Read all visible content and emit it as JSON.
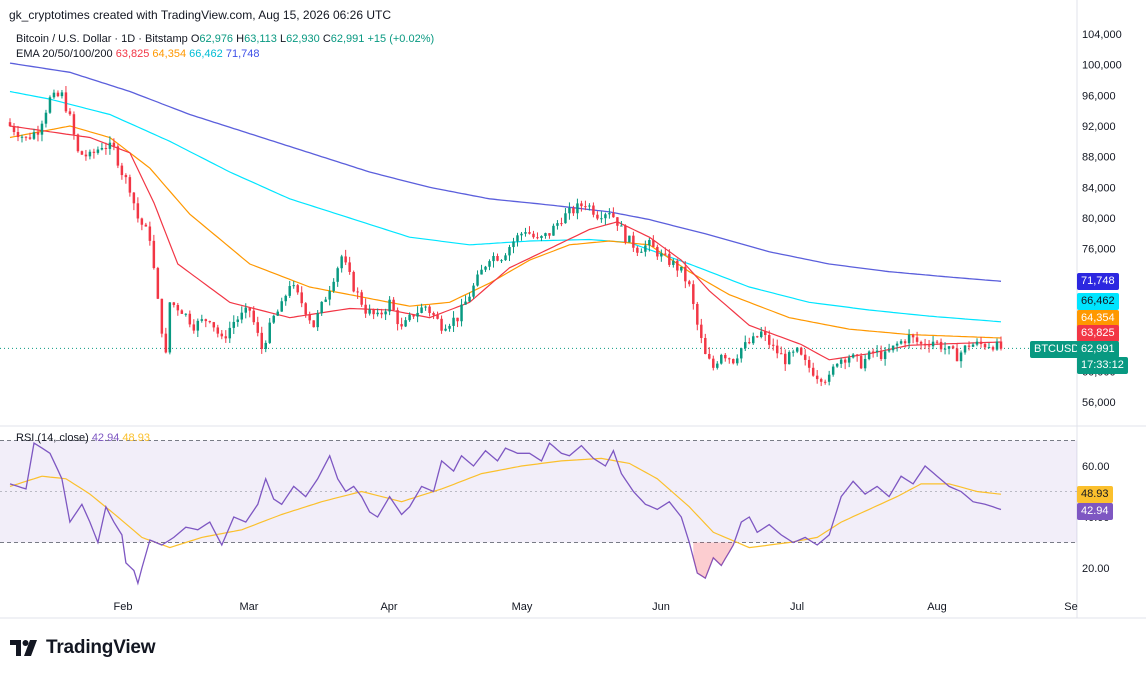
{
  "header": {
    "credit": "gk_cryptotimes created with TradingView.com, Aug 15, 2026 06:26 UTC",
    "symbol": "Bitcoin / U.S. Dollar · 1D · Bitstamp",
    "o_label": "O",
    "o_value": "62,976",
    "h_label": "H",
    "h_value": "63,113",
    "l_label": "L",
    "l_value": "62,930",
    "c_label": "C",
    "c_value": "62,991",
    "change": "+15 (+0.02%)",
    "ema_label": "EMA 20/50/100/200",
    "ema20": "63,825",
    "ema50": "64,354",
    "ema100": "66,462",
    "ema200": "71,748"
  },
  "rsi_legend": {
    "label": "RSI (14, close)",
    "rsi": "42.94",
    "ma": "48.93"
  },
  "brand": {
    "name": "TradingView"
  },
  "badges": {
    "ema200": "71,748",
    "ema100": "66,462",
    "ema50": "64,354",
    "ema20": "63,825",
    "symbol": "BTCUSD",
    "price": "62,991",
    "countdown": "17:33:12",
    "rsi_ma": "48.93",
    "rsi": "42.94"
  },
  "colors": {
    "up": "#089981",
    "down": "#f23645",
    "ema20": "#f23645",
    "ema50": "#ff9800",
    "ema100": "#00e5ff",
    "ema200": "#5b5fdc",
    "rsi": "#7e57c2",
    "rsi_ma": "#fbc02d"
  },
  "chart_data": [
    {
      "type": "candlestick",
      "title": "Bitcoin / U.S. Dollar · 1D · Bitstamp",
      "x_ticks": [
        "Feb",
        "Mar",
        "Apr",
        "May",
        "Jun",
        "Jul",
        "Aug",
        "Se"
      ],
      "y_ticks": [
        "104,000",
        "100,000",
        "96,000",
        "92,000",
        "88,000",
        "84,000",
        "80,000",
        "76,000",
        "60,000",
        "56,000"
      ],
      "ylim": [
        53000,
        105500
      ],
      "close_anchors": [
        [
          0,
          92000
        ],
        [
          4,
          90300
        ],
        [
          7,
          91500
        ],
        [
          10,
          95500
        ],
        [
          13,
          96000
        ],
        [
          15,
          93000
        ],
        [
          17,
          88500
        ],
        [
          20,
          88000
        ],
        [
          23,
          89500
        ],
        [
          26,
          89000
        ],
        [
          28,
          86000
        ],
        [
          30,
          84000
        ],
        [
          32,
          80000
        ],
        [
          35,
          77500
        ],
        [
          37,
          69000
        ],
        [
          39,
          62000
        ],
        [
          40,
          69000
        ],
        [
          43,
          68000
        ],
        [
          46,
          66000
        ],
        [
          50,
          67000
        ],
        [
          53,
          64000
        ],
        [
          56,
          66500
        ],
        [
          60,
          68000
        ],
        [
          63,
          63000
        ],
        [
          66,
          67000
        ],
        [
          68,
          68500
        ],
        [
          70,
          71500
        ],
        [
          73,
          69000
        ],
        [
          76,
          66000
        ],
        [
          80,
          71000
        ],
        [
          83,
          75000
        ],
        [
          86,
          71000
        ],
        [
          89,
          68000
        ],
        [
          92,
          67000
        ],
        [
          95,
          69000
        ],
        [
          98,
          65500
        ],
        [
          101,
          67500
        ],
        [
          104,
          68500
        ],
        [
          108,
          66000
        ],
        [
          112,
          67000
        ],
        [
          115,
          70000
        ],
        [
          118,
          73000
        ],
        [
          120,
          75000
        ],
        [
          123,
          75000
        ],
        [
          126,
          77000
        ],
        [
          129,
          78500
        ],
        [
          132,
          77000
        ],
        [
          135,
          78000
        ],
        [
          138,
          80000
        ],
        [
          141,
          81000
        ],
        [
          144,
          82000
        ],
        [
          147,
          80500
        ],
        [
          150,
          81000
        ],
        [
          152,
          79500
        ],
        [
          154,
          77500
        ],
        [
          157,
          76000
        ],
        [
          160,
          76500
        ],
        [
          163,
          75000
        ],
        [
          166,
          74000
        ],
        [
          168,
          73000
        ],
        [
          170,
          71000
        ],
        [
          172,
          66000
        ],
        [
          174,
          62000
        ],
        [
          176,
          60500
        ],
        [
          178,
          62500
        ],
        [
          181,
          61500
        ],
        [
          183,
          63000
        ],
        [
          186,
          64000
        ],
        [
          188,
          65000
        ],
        [
          191,
          63000
        ],
        [
          194,
          61500
        ],
        [
          197,
          62500
        ],
        [
          199,
          61000
        ],
        [
          202,
          59500
        ],
        [
          205,
          59000
        ],
        [
          207,
          61500
        ],
        [
          210,
          62000
        ],
        [
          213,
          61000
        ],
        [
          216,
          62500
        ],
        [
          219,
          62000
        ],
        [
          222,
          63500
        ],
        [
          225,
          64500
        ],
        [
          228,
          63500
        ],
        [
          231,
          64000
        ],
        [
          234,
          63000
        ],
        [
          237,
          62000
        ],
        [
          240,
          63500
        ],
        [
          243,
          63500
        ],
        [
          246,
          63500
        ],
        [
          248,
          62991
        ]
      ],
      "ema20_anchors": [
        [
          0,
          92000
        ],
        [
          20,
          90500
        ],
        [
          30,
          88500
        ],
        [
          36,
          82000
        ],
        [
          42,
          74000
        ],
        [
          55,
          69000
        ],
        [
          70,
          67000
        ],
        [
          85,
          68200
        ],
        [
          95,
          68000
        ],
        [
          105,
          67000
        ],
        [
          115,
          69000
        ],
        [
          125,
          73500
        ],
        [
          135,
          76000
        ],
        [
          145,
          78500
        ],
        [
          152,
          79500
        ],
        [
          160,
          77500
        ],
        [
          168,
          74500
        ],
        [
          175,
          70500
        ],
        [
          185,
          66000
        ],
        [
          198,
          63500
        ],
        [
          205,
          61500
        ],
        [
          215,
          62300
        ],
        [
          225,
          63400
        ],
        [
          235,
          63600
        ],
        [
          248,
          63825
        ]
      ],
      "ema50_anchors": [
        [
          0,
          90500
        ],
        [
          15,
          92000
        ],
        [
          25,
          90500
        ],
        [
          35,
          86500
        ],
        [
          45,
          80500
        ],
        [
          60,
          74000
        ],
        [
          75,
          71000
        ],
        [
          90,
          69500
        ],
        [
          100,
          68500
        ],
        [
          110,
          69000
        ],
        [
          120,
          71500
        ],
        [
          130,
          74500
        ],
        [
          140,
          76500
        ],
        [
          150,
          77000
        ],
        [
          160,
          76500
        ],
        [
          170,
          73000
        ],
        [
          180,
          70000
        ],
        [
          195,
          67000
        ],
        [
          210,
          65500
        ],
        [
          225,
          64800
        ],
        [
          248,
          64354
        ]
      ],
      "ema100_anchors": [
        [
          0,
          96500
        ],
        [
          10,
          95500
        ],
        [
          25,
          93500
        ],
        [
          40,
          90000
        ],
        [
          55,
          86000
        ],
        [
          70,
          82500
        ],
        [
          85,
          80000
        ],
        [
          100,
          77500
        ],
        [
          115,
          76500
        ],
        [
          130,
          77000
        ],
        [
          145,
          77200
        ],
        [
          155,
          76800
        ],
        [
          170,
          74000
        ],
        [
          185,
          71000
        ],
        [
          200,
          69000
        ],
        [
          215,
          68000
        ],
        [
          230,
          67200
        ],
        [
          248,
          66462
        ]
      ],
      "ema200_anchors": [
        [
          0,
          100200
        ],
        [
          15,
          99000
        ],
        [
          30,
          96500
        ],
        [
          45,
          93500
        ],
        [
          60,
          91000
        ],
        [
          75,
          88500
        ],
        [
          90,
          86000
        ],
        [
          105,
          84000
        ],
        [
          120,
          82500
        ],
        [
          135,
          81700
        ],
        [
          150,
          80800
        ],
        [
          160,
          79800
        ],
        [
          175,
          77800
        ],
        [
          190,
          75600
        ],
        [
          205,
          74000
        ],
        [
          220,
          73000
        ],
        [
          235,
          72300
        ],
        [
          248,
          71748
        ]
      ]
    },
    {
      "type": "line",
      "title": "RSI (14, close)",
      "y_ticks": [
        "60.00",
        "40.00",
        "20.00"
      ],
      "ylim": [
        10,
        72
      ],
      "band": [
        30,
        70
      ],
      "rsi_anchors": [
        [
          0,
          53
        ],
        [
          4,
          51
        ],
        [
          6,
          69
        ],
        [
          10,
          65
        ],
        [
          13,
          55
        ],
        [
          15,
          38
        ],
        [
          18,
          45
        ],
        [
          20,
          38
        ],
        [
          22,
          30
        ],
        [
          24,
          44
        ],
        [
          26,
          38
        ],
        [
          28,
          33
        ],
        [
          29,
          22
        ],
        [
          31,
          19
        ],
        [
          32,
          14
        ],
        [
          33,
          20
        ],
        [
          35,
          31
        ],
        [
          38,
          29
        ],
        [
          41,
          32
        ],
        [
          44,
          36
        ],
        [
          47,
          35
        ],
        [
          50,
          38
        ],
        [
          53,
          29
        ],
        [
          56,
          40
        ],
        [
          59,
          38
        ],
        [
          62,
          45
        ],
        [
          64,
          55
        ],
        [
          66,
          47
        ],
        [
          68,
          45
        ],
        [
          71,
          52
        ],
        [
          74,
          48
        ],
        [
          77,
          55
        ],
        [
          80,
          64
        ],
        [
          82,
          55
        ],
        [
          84,
          50
        ],
        [
          86,
          52
        ],
        [
          88,
          48
        ],
        [
          90,
          42
        ],
        [
          92,
          40
        ],
        [
          95,
          48
        ],
        [
          98,
          41
        ],
        [
          100,
          44
        ],
        [
          103,
          52
        ],
        [
          106,
          50
        ],
        [
          108,
          62
        ],
        [
          111,
          58
        ],
        [
          113,
          64
        ],
        [
          116,
          60
        ],
        [
          119,
          66
        ],
        [
          122,
          62
        ],
        [
          124,
          67
        ],
        [
          127,
          65
        ],
        [
          130,
          65
        ],
        [
          133,
          62
        ],
        [
          135,
          69
        ],
        [
          138,
          65
        ],
        [
          140,
          64
        ],
        [
          143,
          68
        ],
        [
          146,
          63
        ],
        [
          149,
          60
        ],
        [
          151,
          66
        ],
        [
          153,
          57
        ],
        [
          156,
          50
        ],
        [
          159,
          45
        ],
        [
          162,
          43
        ],
        [
          165,
          46
        ],
        [
          168,
          40
        ],
        [
          170,
          30
        ],
        [
          172,
          18
        ],
        [
          174,
          16
        ],
        [
          176,
          24
        ],
        [
          178,
          21
        ],
        [
          181,
          29
        ],
        [
          183,
          38
        ],
        [
          185,
          40
        ],
        [
          187,
          34
        ],
        [
          190,
          37
        ],
        [
          193,
          33
        ],
        [
          196,
          30
        ],
        [
          199,
          32
        ],
        [
          202,
          29
        ],
        [
          205,
          33
        ],
        [
          208,
          48
        ],
        [
          211,
          54
        ],
        [
          214,
          49
        ],
        [
          217,
          52
        ],
        [
          220,
          48
        ],
        [
          223,
          56
        ],
        [
          226,
          53
        ],
        [
          229,
          60
        ],
        [
          232,
          56
        ],
        [
          235,
          52
        ],
        [
          238,
          50
        ],
        [
          241,
          46
        ],
        [
          244,
          45
        ],
        [
          246,
          44
        ],
        [
          248,
          42.94
        ]
      ],
      "ma_anchors": [
        [
          0,
          52
        ],
        [
          8,
          56
        ],
        [
          14,
          55
        ],
        [
          20,
          49
        ],
        [
          27,
          40
        ],
        [
          33,
          32
        ],
        [
          40,
          28
        ],
        [
          48,
          32
        ],
        [
          58,
          35
        ],
        [
          68,
          41
        ],
        [
          78,
          46
        ],
        [
          88,
          50
        ],
        [
          98,
          46
        ],
        [
          108,
          51
        ],
        [
          118,
          57
        ],
        [
          128,
          60
        ],
        [
          138,
          62
        ],
        [
          148,
          63
        ],
        [
          155,
          61
        ],
        [
          162,
          55
        ],
        [
          170,
          44
        ],
        [
          176,
          34
        ],
        [
          185,
          28
        ],
        [
          195,
          30
        ],
        [
          202,
          32
        ],
        [
          208,
          38
        ],
        [
          215,
          43
        ],
        [
          222,
          48
        ],
        [
          228,
          53
        ],
        [
          235,
          53
        ],
        [
          242,
          50
        ],
        [
          248,
          48.93
        ]
      ]
    }
  ]
}
